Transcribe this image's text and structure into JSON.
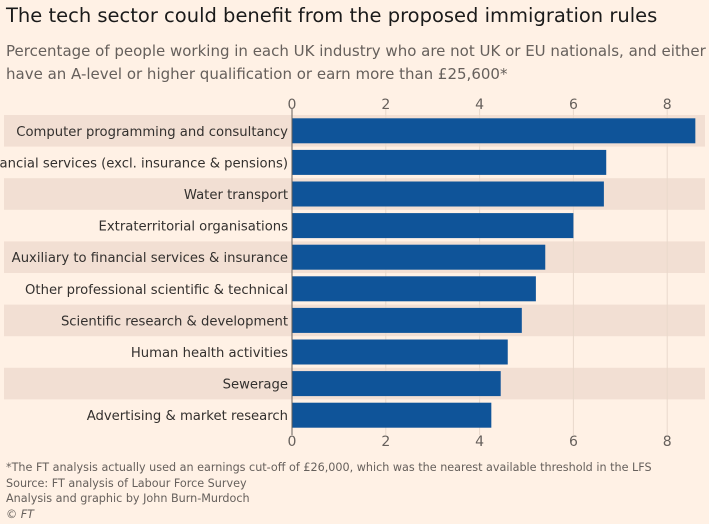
{
  "title": "The tech sector could benefit from the proposed immigration rules",
  "subtitle": "Percentage of people working in each UK industry who are not UK or EU nationals, and either have an A-level or higher qualification or earn more than £25,600*",
  "footer": {
    "note": "*The FT analysis actually used an earnings cut-off of £26,000, which was the nearest available threshold in the LFS",
    "source": "Source: FT analysis of Labour Force Survey",
    "credit": "Analysis and graphic by John Burn-Murdoch",
    "copyright": "© FT"
  },
  "colors": {
    "bar": "#0f5499",
    "band": "#f2dfd3",
    "background": "#fff1e5",
    "grid": "#e9d9cc"
  },
  "chart_data": {
    "type": "bar",
    "orientation": "horizontal",
    "categories": [
      "Computer programming and consultancy",
      "Financial services (excl. insurance & pensions)",
      "Water transport",
      "Extraterritorial organisations",
      "Auxiliary to financial services & insurance",
      "Other professional scientific & technical",
      "Scientific research & development",
      "Human health activities",
      "Sewerage",
      "Advertising & market research"
    ],
    "values": [
      8.6,
      6.7,
      6.65,
      6.0,
      5.4,
      5.2,
      4.9,
      4.6,
      4.45,
      4.25
    ],
    "xlim": [
      0,
      8.8
    ],
    "xticks": [
      0,
      2,
      4,
      6,
      8
    ],
    "xtick_labels": [
      "0",
      "2",
      "4",
      "6",
      "8"
    ],
    "axis_labels_top_and_bottom": true,
    "grid": true,
    "alternating_bands": true
  }
}
